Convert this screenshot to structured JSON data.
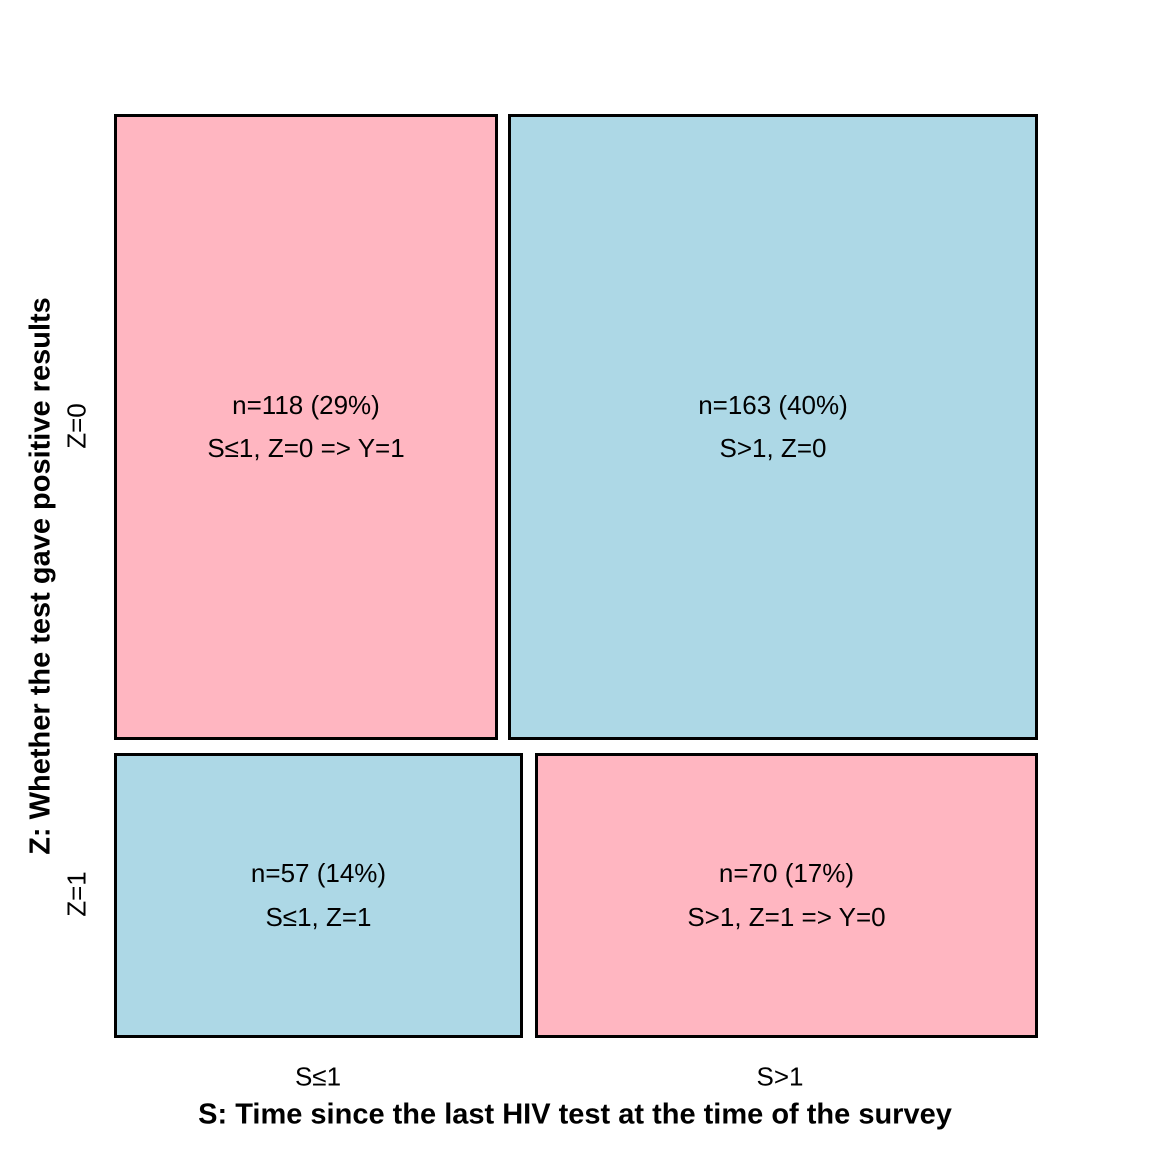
{
  "chart_data": {
    "type": "mosaic",
    "title": "",
    "x_axis": {
      "label": "S: Time since the last HIV test at the time of the survey",
      "categories": [
        "S≤1",
        "S>1"
      ]
    },
    "y_axis": {
      "label": "Z: Whether the test gave positive results",
      "categories": [
        "Z=0",
        "Z=1"
      ]
    },
    "legend": "none",
    "grid": "off",
    "cells": [
      {
        "row": "Z=0",
        "col": "S≤1",
        "n": 118,
        "percent": 29,
        "line1": "n=118 (29%)",
        "line2": "S≤1, Z=0 => Y=1",
        "color": "#FFB6C1"
      },
      {
        "row": "Z=0",
        "col": "S>1",
        "n": 163,
        "percent": 40,
        "line1": "n=163 (40%)",
        "line2": "S>1, Z=0",
        "color": "#ADD8E6"
      },
      {
        "row": "Z=1",
        "col": "S≤1",
        "n": 57,
        "percent": 14,
        "line1": "n=57 (14%)",
        "line2": "S≤1, Z=1",
        "color": "#ADD8E6"
      },
      {
        "row": "Z=1",
        "col": "S>1",
        "n": 70,
        "percent": 17,
        "line1": "n=70 (17%)",
        "line2": "S>1, Z=1 => Y=0",
        "color": "#FFB6C1"
      }
    ],
    "colors": {
      "pink": "#FFB6C1",
      "blue": "#ADD8E6",
      "border": "#000000",
      "background": "#ffffff"
    }
  }
}
